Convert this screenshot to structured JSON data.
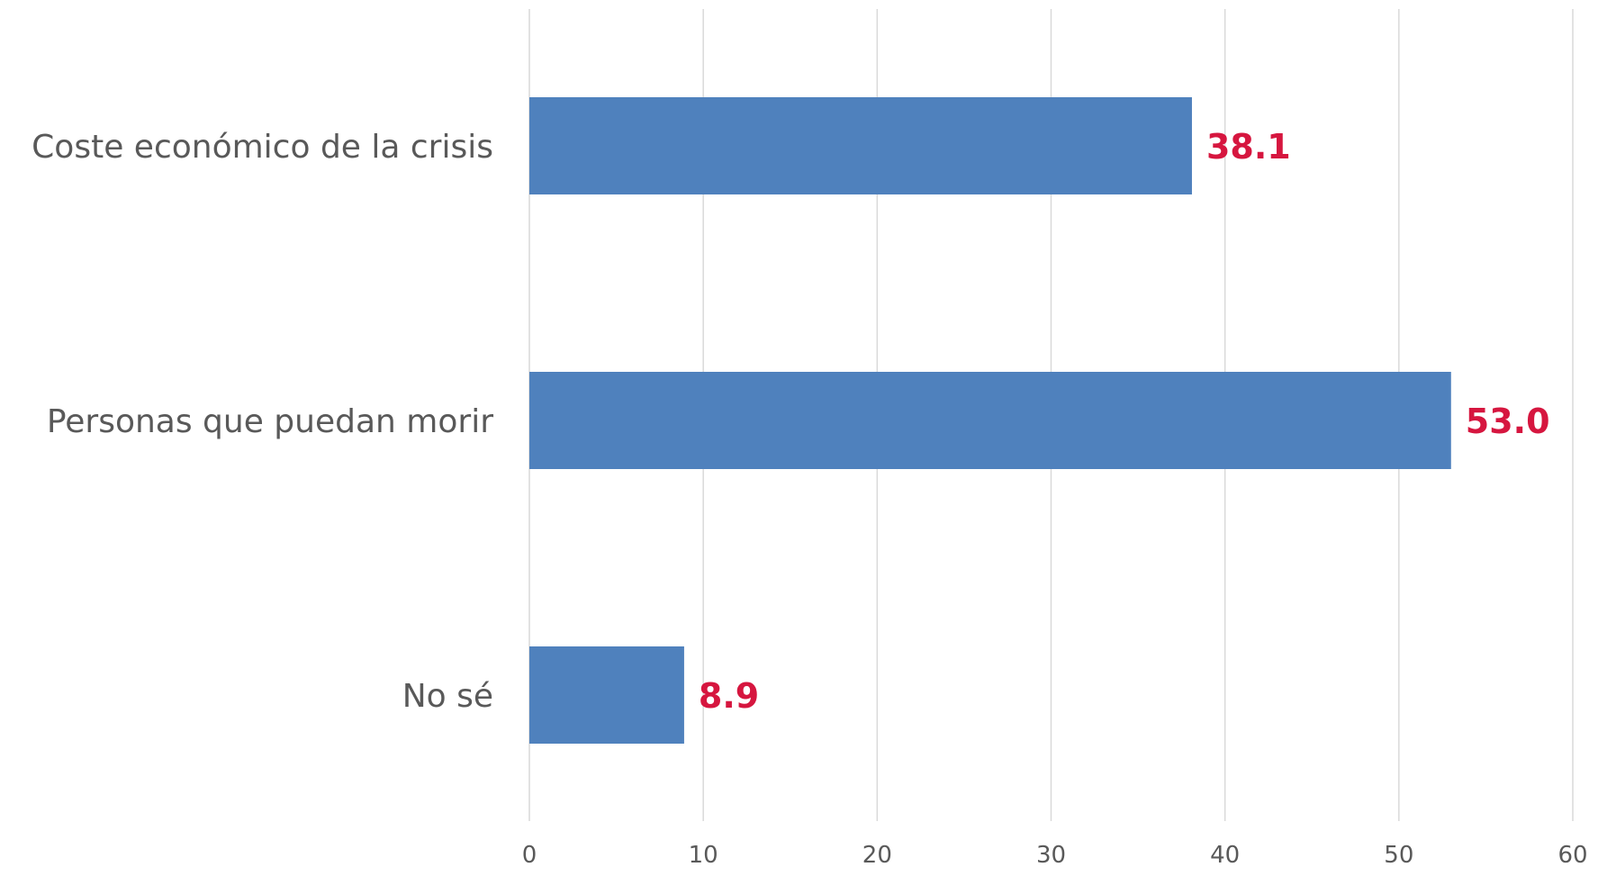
{
  "chart_data": {
    "type": "bar",
    "orientation": "horizontal",
    "categories": [
      "Coste económico de la crisis",
      "Personas que puedan morir",
      "No sé"
    ],
    "values": [
      38.1,
      53.0,
      8.9
    ],
    "data_labels": [
      "38.1",
      "53.0",
      "8.9"
    ],
    "title": "",
    "xlabel": "",
    "ylabel": "",
    "xlim": [
      0,
      60
    ],
    "x_ticks": [
      0,
      10,
      20,
      30,
      40,
      50,
      60
    ],
    "x_tick_labels": [
      "0",
      "10",
      "20",
      "30",
      "40",
      "50",
      "60"
    ],
    "grid": "vertical",
    "legend": "none",
    "colors": {
      "bar": "#4f81bd",
      "data_label": "#d6163f",
      "text": "#595959",
      "grid": "#d9d9d9"
    }
  }
}
